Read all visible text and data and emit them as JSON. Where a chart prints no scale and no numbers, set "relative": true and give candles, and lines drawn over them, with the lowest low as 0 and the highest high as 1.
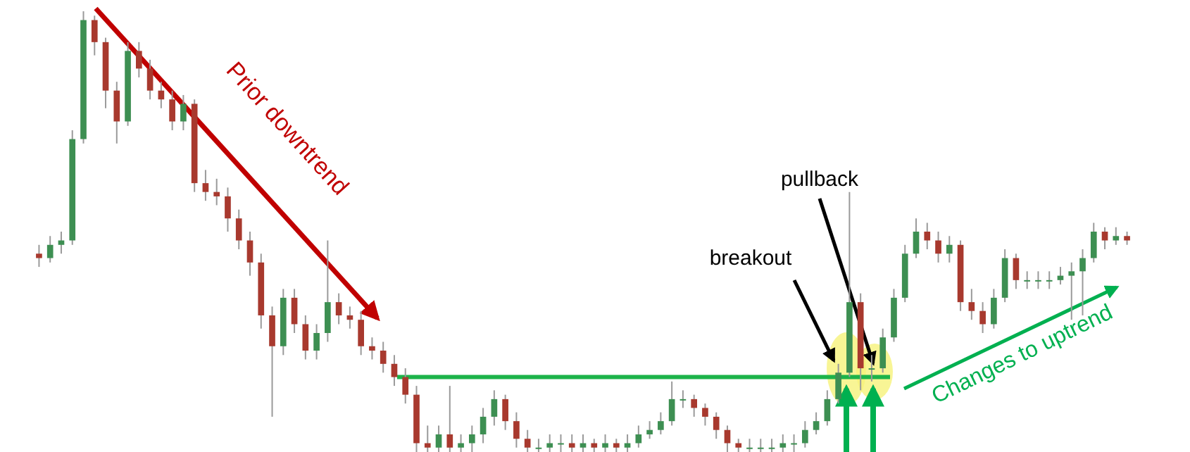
{
  "chart_data": {
    "type": "candlestick",
    "relative": true,
    "categories": [
      null,
      null,
      null,
      null,
      null,
      null,
      null,
      null,
      null,
      null,
      null,
      null,
      null,
      null,
      null,
      null,
      null,
      null,
      null,
      null,
      null,
      null,
      null,
      null,
      null,
      null,
      null,
      null,
      null,
      null,
      null,
      null,
      null,
      null,
      null,
      null,
      null,
      null,
      null,
      null,
      null,
      null,
      null,
      null,
      null,
      null,
      null,
      null,
      null,
      null,
      null,
      null,
      null,
      null,
      null,
      null,
      null,
      null,
      null,
      null,
      null,
      null,
      null,
      null,
      null,
      null,
      null,
      null,
      null,
      null,
      null,
      null,
      null,
      null,
      null,
      null,
      null,
      null,
      null,
      null,
      null,
      null,
      null,
      null,
      null,
      null,
      null,
      null,
      null,
      null,
      null,
      null,
      null,
      null,
      null,
      null,
      null,
      null,
      null
    ],
    "ohlc": [
      [
        0.45,
        0.47,
        0.42,
        0.44
      ],
      [
        0.44,
        0.49,
        0.43,
        0.47
      ],
      [
        0.47,
        0.5,
        0.45,
        0.48
      ],
      [
        0.48,
        0.73,
        0.47,
        0.71
      ],
      [
        0.71,
        1.0,
        0.7,
        0.98
      ],
      [
        0.98,
        0.99,
        0.9,
        0.93
      ],
      [
        0.93,
        0.94,
        0.78,
        0.82
      ],
      [
        0.82,
        0.84,
        0.7,
        0.75
      ],
      [
        0.75,
        0.93,
        0.74,
        0.91
      ],
      [
        0.91,
        0.93,
        0.85,
        0.87
      ],
      [
        0.87,
        0.89,
        0.8,
        0.82
      ],
      [
        0.82,
        0.84,
        0.78,
        0.8
      ],
      [
        0.8,
        0.82,
        0.73,
        0.75
      ],
      [
        0.75,
        0.81,
        0.73,
        0.79
      ],
      [
        0.79,
        0.8,
        0.59,
        0.61
      ],
      [
        0.61,
        0.64,
        0.57,
        0.59
      ],
      [
        0.59,
        0.62,
        0.56,
        0.58
      ],
      [
        0.58,
        0.6,
        0.5,
        0.53
      ],
      [
        0.53,
        0.55,
        0.46,
        0.48
      ],
      [
        0.48,
        0.5,
        0.4,
        0.43
      ],
      [
        0.43,
        0.45,
        0.28,
        0.31
      ],
      [
        0.31,
        0.33,
        0.08,
        0.24
      ],
      [
        0.24,
        0.37,
        0.22,
        0.35
      ],
      [
        0.35,
        0.37,
        0.27,
        0.29
      ],
      [
        0.29,
        0.31,
        0.21,
        0.23
      ],
      [
        0.23,
        0.29,
        0.21,
        0.27
      ],
      [
        0.27,
        0.48,
        0.25,
        0.34
      ],
      [
        0.34,
        0.36,
        0.29,
        0.31
      ],
      [
        0.31,
        0.33,
        0.28,
        0.3
      ],
      [
        0.3,
        0.32,
        0.22,
        0.24
      ],
      [
        0.24,
        0.26,
        0.21,
        0.23
      ],
      [
        0.23,
        0.25,
        0.18,
        0.2
      ],
      [
        0.2,
        0.22,
        0.15,
        0.17
      ],
      [
        0.17,
        0.19,
        0.11,
        0.13
      ],
      [
        0.13,
        0.15,
        0.0,
        0.02
      ],
      [
        0.02,
        0.06,
        0.0,
        0.01
      ],
      [
        0.01,
        0.06,
        0.0,
        0.04
      ],
      [
        0.04,
        0.15,
        0.0,
        0.01
      ],
      [
        0.01,
        0.04,
        0.0,
        0.02
      ],
      [
        0.02,
        0.06,
        0.0,
        0.04
      ],
      [
        0.04,
        0.1,
        0.02,
        0.08
      ],
      [
        0.08,
        0.14,
        0.06,
        0.12
      ],
      [
        0.12,
        0.13,
        0.05,
        0.07
      ],
      [
        0.07,
        0.09,
        0.01,
        0.03
      ],
      [
        0.03,
        0.05,
        0.0,
        0.01
      ],
      [
        0.01,
        0.03,
        0.0,
        0.01
      ],
      [
        0.01,
        0.04,
        0.0,
        0.02
      ],
      [
        0.02,
        0.04,
        0.0,
        0.02
      ],
      [
        0.02,
        0.04,
        0.0,
        0.01
      ],
      [
        0.01,
        0.04,
        0.0,
        0.02
      ],
      [
        0.02,
        0.03,
        0.0,
        0.01
      ],
      [
        0.01,
        0.04,
        0.0,
        0.02
      ],
      [
        0.02,
        0.03,
        0.0,
        0.01
      ],
      [
        0.01,
        0.04,
        0.0,
        0.02
      ],
      [
        0.02,
        0.06,
        0.01,
        0.04
      ],
      [
        0.04,
        0.07,
        0.03,
        0.05
      ],
      [
        0.05,
        0.09,
        0.04,
        0.07
      ],
      [
        0.07,
        0.16,
        0.06,
        0.12
      ],
      [
        0.12,
        0.14,
        0.1,
        0.12
      ],
      [
        0.12,
        0.13,
        0.08,
        0.1
      ],
      [
        0.1,
        0.11,
        0.06,
        0.08
      ],
      [
        0.08,
        0.09,
        0.03,
        0.05
      ],
      [
        0.05,
        0.06,
        0.0,
        0.02
      ],
      [
        0.02,
        0.03,
        0.0,
        0.01
      ],
      [
        0.01,
        0.03,
        0.0,
        0.01
      ],
      [
        0.01,
        0.03,
        0.0,
        0.01
      ],
      [
        0.01,
        0.03,
        0.0,
        0.01
      ],
      [
        0.01,
        0.04,
        0.0,
        0.02
      ],
      [
        0.02,
        0.04,
        0.0,
        0.02
      ],
      [
        0.02,
        0.07,
        0.01,
        0.05
      ],
      [
        0.05,
        0.09,
        0.04,
        0.07
      ],
      [
        0.07,
        0.14,
        0.06,
        0.12
      ],
      [
        0.12,
        0.2,
        0.11,
        0.18
      ],
      [
        0.18,
        0.59,
        0.17,
        0.34
      ],
      [
        0.34,
        0.36,
        0.14,
        0.19
      ],
      [
        0.19,
        0.22,
        0.16,
        0.19
      ],
      [
        0.19,
        0.28,
        0.18,
        0.26
      ],
      [
        0.26,
        0.37,
        0.25,
        0.35
      ],
      [
        0.35,
        0.47,
        0.34,
        0.45
      ],
      [
        0.45,
        0.53,
        0.44,
        0.5
      ],
      [
        0.5,
        0.52,
        0.46,
        0.48
      ],
      [
        0.48,
        0.5,
        0.43,
        0.45
      ],
      [
        0.45,
        0.49,
        0.43,
        0.47
      ],
      [
        0.47,
        0.48,
        0.32,
        0.34
      ],
      [
        0.34,
        0.37,
        0.3,
        0.32
      ],
      [
        0.32,
        0.34,
        0.27,
        0.29
      ],
      [
        0.29,
        0.37,
        0.28,
        0.35
      ],
      [
        0.35,
        0.46,
        0.34,
        0.44
      ],
      [
        0.44,
        0.45,
        0.37,
        0.39
      ],
      [
        0.39,
        0.41,
        0.37,
        0.39
      ],
      [
        0.39,
        0.41,
        0.37,
        0.39
      ],
      [
        0.39,
        0.41,
        0.37,
        0.39
      ],
      [
        0.39,
        0.42,
        0.38,
        0.4
      ],
      [
        0.4,
        0.43,
        0.3,
        0.41
      ],
      [
        0.41,
        0.46,
        0.31,
        0.44
      ],
      [
        0.44,
        0.52,
        0.43,
        0.5
      ],
      [
        0.5,
        0.51,
        0.46,
        0.48
      ],
      [
        0.48,
        0.51,
        0.47,
        0.49
      ],
      [
        0.49,
        0.5,
        0.47,
        0.48
      ]
    ],
    "ref_lines": [
      {
        "axis": "y",
        "value": 0.17,
        "color": "#1db34a"
      }
    ],
    "annotations": [
      "Prior downtrend",
      "breakout",
      "pullback",
      "Changes to uptrend"
    ]
  }
}
